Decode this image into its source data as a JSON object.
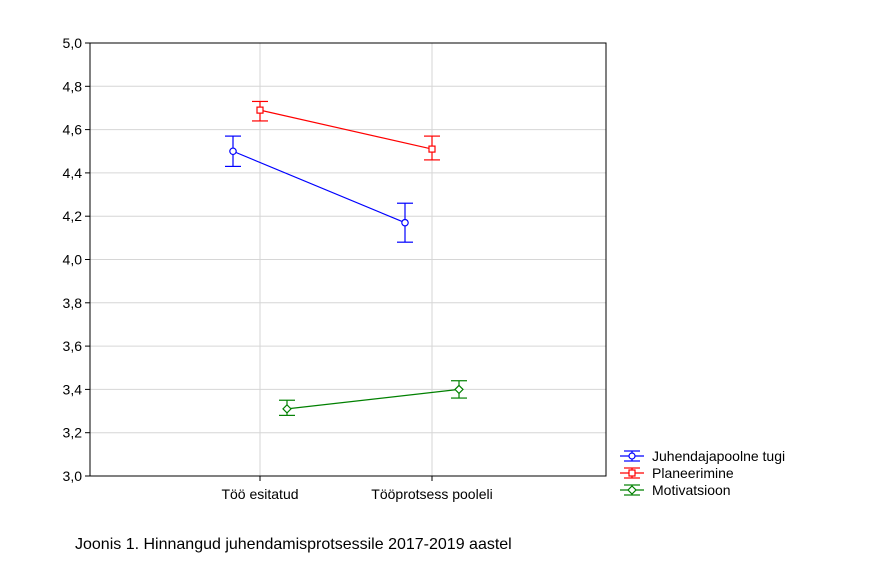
{
  "caption": "Joonis 1. Hinnangud juhendamisprotsessile 2017-2019 aastel",
  "chart_data": {
    "type": "line",
    "title": "",
    "xlabel": "",
    "ylabel": "",
    "categories": [
      "Töö esitatud",
      "Tööprotsess pooleli"
    ],
    "ylim": [
      3.0,
      5.0
    ],
    "yticks": [
      "3,0",
      "3,2",
      "3,4",
      "3,6",
      "3,8",
      "4,0",
      "4,2",
      "4,4",
      "4,6",
      "4,8",
      "5,0"
    ],
    "grid": true,
    "legend_position": "bottom-right",
    "series": [
      {
        "name": "Juhendajapoolne tugi",
        "color": "#0000ff",
        "marker": "circle",
        "values": [
          4.5,
          4.17
        ],
        "lower": [
          4.43,
          4.08
        ],
        "upper": [
          4.57,
          4.26
        ]
      },
      {
        "name": "Planeerimine",
        "color": "#ff0000",
        "marker": "square",
        "values": [
          4.69,
          4.51
        ],
        "lower": [
          4.64,
          4.46
        ],
        "upper": [
          4.73,
          4.57
        ]
      },
      {
        "name": "Motivatsioon",
        "color": "#008000",
        "marker": "diamond",
        "values": [
          3.31,
          3.4
        ],
        "lower": [
          3.28,
          3.36
        ],
        "upper": [
          3.35,
          3.44
        ]
      }
    ]
  }
}
